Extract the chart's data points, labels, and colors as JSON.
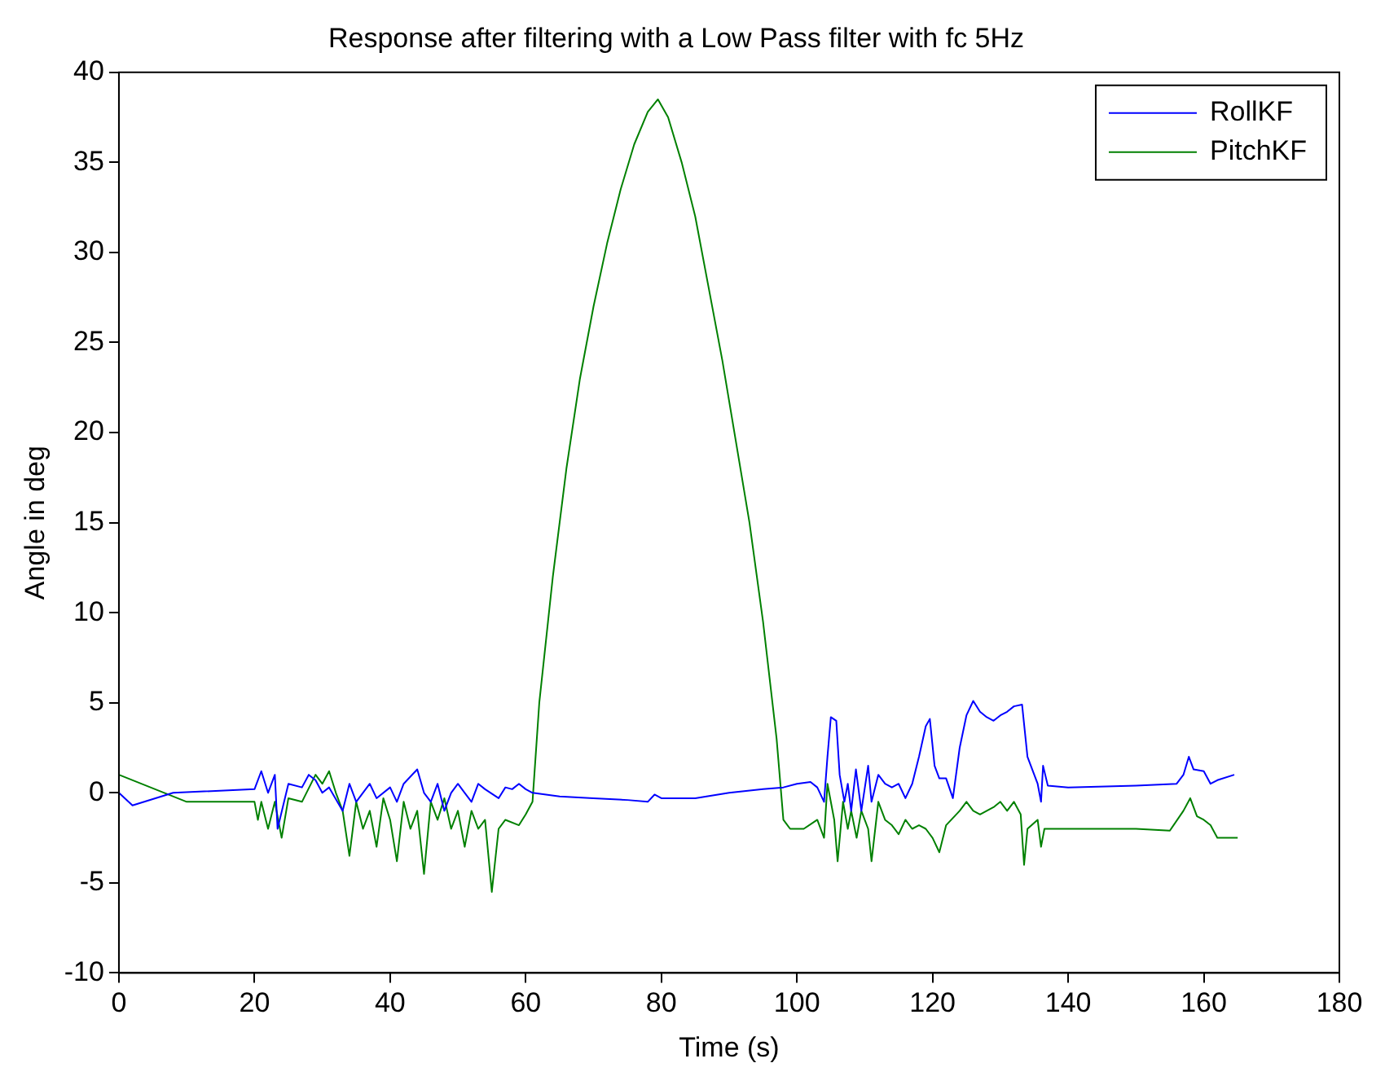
{
  "chart_data": {
    "type": "line",
    "title": "Response after filtering with a Low Pass filter with fc 5Hz",
    "xlabel": "Time (s)",
    "ylabel": "Angle in deg",
    "xlim": [
      0,
      180
    ],
    "xticks": [
      0,
      20,
      40,
      60,
      80,
      100,
      120,
      140,
      160,
      180
    ],
    "ylim": [
      -10,
      40
    ],
    "yticks": [
      -10,
      -5,
      0,
      5,
      10,
      15,
      20,
      25,
      30,
      35,
      40
    ],
    "grid": false,
    "legend": "top right",
    "marker": "none",
    "line_style": "solid",
    "series": [
      {
        "name": "RollKF",
        "color": "#0000ff",
        "x": [
          0,
          2,
          8,
          20,
          21,
          22,
          23,
          23.4,
          25,
          27,
          28,
          29,
          30,
          31,
          33,
          34,
          35,
          37,
          38,
          40,
          41,
          42,
          44,
          45,
          46,
          47,
          48,
          49,
          50,
          51,
          52,
          53,
          54,
          56,
          57,
          58,
          59,
          60,
          61,
          65,
          70,
          75,
          78,
          79,
          80,
          85,
          90,
          95,
          98,
          100,
          102,
          103,
          104,
          104.5,
          105,
          105.8,
          106.3,
          107,
          107.5,
          108,
          108.7,
          109.5,
          110.5,
          111,
          112,
          113,
          114,
          115,
          116,
          117,
          118,
          119,
          119.6,
          120.3,
          121,
          122,
          123,
          124,
          125,
          126,
          127,
          128,
          129,
          130,
          131,
          132,
          133.2,
          134,
          135,
          135.5,
          136,
          136.3,
          137,
          140,
          150,
          156,
          157,
          157.8,
          158.5,
          160,
          161,
          162,
          164.5
        ],
        "values": [
          0,
          -0.7,
          0,
          0.2,
          1.2,
          0,
          1,
          -2,
          0.5,
          0.3,
          1,
          0.7,
          0,
          0.3,
          -1,
          0.5,
          -0.5,
          0.5,
          -0.3,
          0.3,
          -0.5,
          0.5,
          1.3,
          0,
          -0.5,
          0.5,
          -1,
          0,
          0.5,
          0,
          -0.5,
          0.5,
          0.2,
          -0.3,
          0.3,
          0.2,
          0.5,
          0.2,
          0,
          -0.2,
          -0.3,
          -0.4,
          -0.5,
          -0.1,
          -0.3,
          -0.3,
          0,
          0.2,
          0.3,
          0.5,
          0.6,
          0.3,
          -0.5,
          2,
          4.2,
          4,
          1,
          -0.5,
          0.5,
          -1,
          1.3,
          -1,
          1.5,
          -0.5,
          1,
          0.5,
          0.3,
          0.5,
          -0.3,
          0.5,
          2,
          3.7,
          4.1,
          1.5,
          0.8,
          0.8,
          -0.3,
          2.5,
          4.3,
          5.1,
          4.5,
          4.2,
          4,
          4.3,
          4.5,
          4.8,
          4.9,
          2,
          1,
          0.5,
          -0.5,
          1.5,
          0.4,
          0.3,
          0.4,
          0.5,
          1,
          2,
          1.3,
          1.2,
          0.5,
          0.7,
          1
        ]
      },
      {
        "name": "PitchKF",
        "color": "#008000",
        "x": [
          0,
          10,
          20,
          20.5,
          21,
          22,
          23,
          24,
          25,
          27,
          29,
          30,
          31,
          32,
          33,
          34,
          35,
          36,
          37,
          38,
          39,
          40,
          41,
          42,
          43,
          44,
          45,
          46,
          47,
          48,
          49,
          50,
          51,
          52,
          53,
          54,
          55,
          56,
          57,
          59,
          60,
          61,
          62,
          64,
          66,
          68,
          70,
          72,
          74,
          76,
          78,
          79.5,
          81,
          83,
          85,
          87,
          89,
          91,
          93,
          95,
          97,
          98,
          99,
          101,
          103,
          104,
          104.5,
          105.5,
          106,
          106.8,
          107.5,
          108,
          108.8,
          109.5,
          110.5,
          111,
          112,
          113,
          114,
          115,
          116,
          117,
          118,
          119,
          120,
          121,
          122,
          124,
          125,
          126,
          127,
          128,
          129,
          130,
          131,
          132,
          133,
          133.5,
          134,
          135.5,
          136,
          136.5,
          140,
          150,
          155,
          157,
          158,
          159,
          160,
          161,
          162,
          165
        ],
        "values": [
          1,
          -0.5,
          -0.5,
          -1.5,
          -0.5,
          -2,
          -0.5,
          -2.5,
          -0.3,
          -0.5,
          1,
          0.5,
          1.2,
          0,
          -1,
          -3.5,
          -0.5,
          -2,
          -1,
          -3,
          -0.3,
          -1.5,
          -3.8,
          -0.5,
          -2,
          -1,
          -4.5,
          -0.5,
          -1.5,
          -0.3,
          -2,
          -1,
          -3,
          -1,
          -2,
          -1.5,
          -5.5,
          -2,
          -1.5,
          -1.8,
          -1.2,
          -0.5,
          5,
          12,
          18,
          23,
          27,
          30.5,
          33.5,
          36,
          37.8,
          38.5,
          37.5,
          35,
          32,
          28,
          24,
          19.5,
          15,
          9.5,
          3,
          -1.5,
          -2,
          -2,
          -1.5,
          -2.5,
          0.5,
          -1.5,
          -3.8,
          -0.5,
          -2,
          -1,
          -2.5,
          -1,
          -2,
          -3.8,
          -0.5,
          -1.5,
          -1.8,
          -2.3,
          -1.5,
          -2,
          -1.8,
          -2,
          -2.5,
          -3.3,
          -1.8,
          -1,
          -0.5,
          -1,
          -1.2,
          -1,
          -0.8,
          -0.5,
          -1,
          -0.5,
          -1.2,
          -4,
          -2,
          -1.5,
          -3,
          -2,
          -2,
          -2,
          -2.1,
          -1,
          -0.3,
          -1.3,
          -1.5,
          -1.8,
          -2.5,
          -2.5
        ]
      }
    ]
  }
}
